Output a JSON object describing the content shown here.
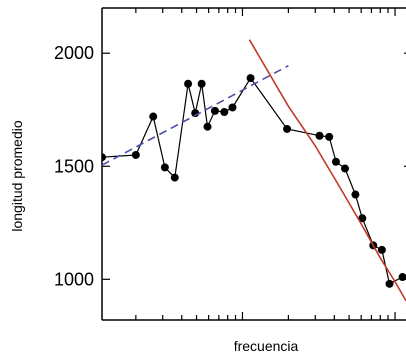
{
  "chart_data": {
    "type": "line",
    "title": "",
    "xlabel": "frecuencia",
    "ylabel": "longitud promedio",
    "x_scale": "log",
    "xlim": [
      1.2,
      118
    ],
    "ylim": [
      820,
      2200
    ],
    "x_major_ticks": [
      10,
      100
    ],
    "y_ticks": [
      1000,
      1500,
      2000
    ],
    "y_tick_labels": [
      "1000",
      "1500",
      "2000"
    ],
    "grid": false,
    "legend": "none",
    "series": [
      {
        "kind": "line-with-markers",
        "color": "#000000",
        "points": [
          [
            1.2,
            1540
          ],
          [
            2.0,
            1550
          ],
          [
            2.6,
            1720
          ],
          [
            3.1,
            1495
          ],
          [
            3.6,
            1450
          ],
          [
            4.4,
            1865
          ],
          [
            4.9,
            1735
          ],
          [
            5.4,
            1865
          ],
          [
            5.9,
            1675
          ],
          [
            6.6,
            1745
          ],
          [
            7.6,
            1740
          ],
          [
            8.6,
            1760
          ],
          [
            11.3,
            1890
          ],
          [
            19.6,
            1665
          ],
          [
            32,
            1635
          ],
          [
            37,
            1630
          ],
          [
            41,
            1520
          ],
          [
            47,
            1490
          ],
          [
            55,
            1375
          ],
          [
            61,
            1270
          ],
          [
            72,
            1150
          ],
          [
            82,
            1130
          ],
          [
            92,
            980
          ],
          [
            112,
            1010
          ]
        ]
      },
      {
        "kind": "fit-line",
        "style": "dashed",
        "color": "#4b4fa6",
        "points": [
          [
            1.2,
            1505
          ],
          [
            20,
            1945
          ]
        ]
      },
      {
        "kind": "fit-curve",
        "style": "solid",
        "color": "#c0392b",
        "points": [
          [
            11.1,
            2060
          ],
          [
            20,
            1765
          ],
          [
            30,
            1590
          ],
          [
            45,
            1390
          ],
          [
            60,
            1245
          ],
          [
            80,
            1095
          ],
          [
            100,
            990
          ],
          [
            118,
            905
          ]
        ]
      }
    ]
  }
}
